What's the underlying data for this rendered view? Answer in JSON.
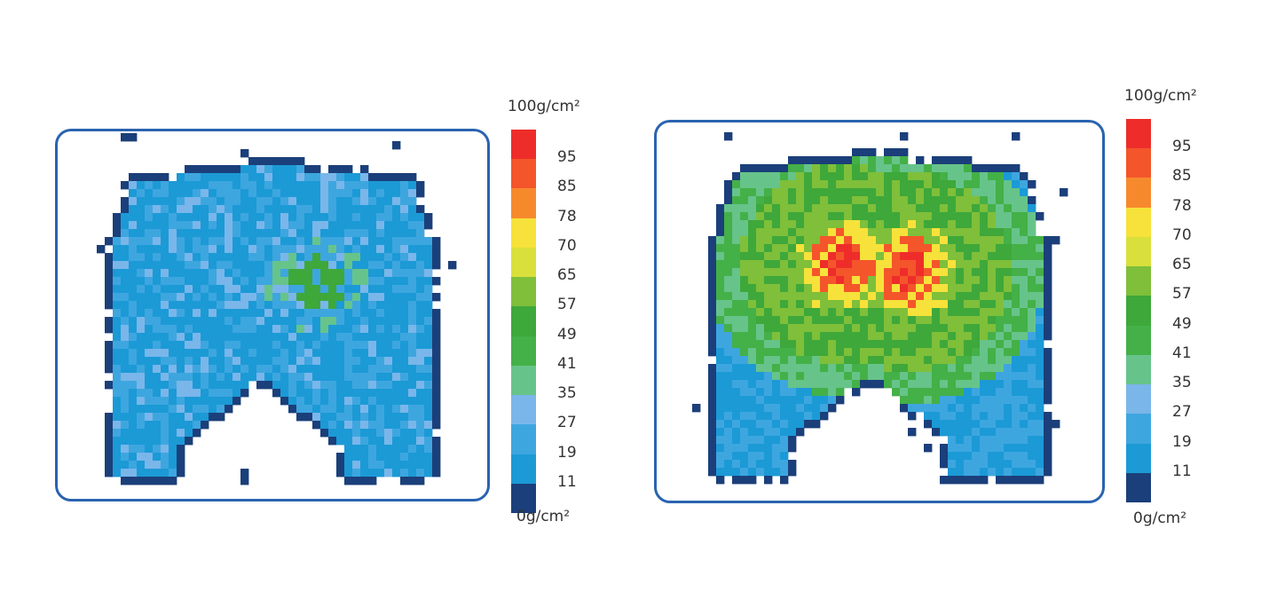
{
  "chart_data": [
    {
      "type": "heatmap",
      "panel": "left",
      "legend": {
        "top_label": "100g/cm²",
        "bottom_label": "0g/cm²",
        "tick_labels": [
          "95",
          "85",
          "78",
          "70",
          "65",
          "57",
          "49",
          "41",
          "35",
          "27",
          "19",
          "11"
        ],
        "colors": [
          "#ee2d2a",
          "#f4552b",
          "#f7892d",
          "#f6e23a",
          "#d9e03b",
          "#7fbf3a",
          "#3ea83a",
          "#44b048",
          "#66c48a",
          "#7ab6ea",
          "#3ea6df",
          "#1b9ad6",
          "#1b3f7a"
        ]
      },
      "dominant_range": "11–27",
      "peak_range": "49–57"
    },
    {
      "type": "heatmap",
      "panel": "right",
      "legend": {
        "top_label": "100g/cm²",
        "bottom_label": "0g/cm²",
        "tick_labels": [
          "95",
          "85",
          "78",
          "70",
          "65",
          "57",
          "49",
          "41",
          "35",
          "27",
          "19",
          "11"
        ],
        "colors": [
          "#ee2d2a",
          "#f4552b",
          "#f7892d",
          "#f6e23a",
          "#d9e03b",
          "#7fbf3a",
          "#3ea83a",
          "#44b048",
          "#66c48a",
          "#7ab6ea",
          "#3ea6df",
          "#1b9ad6",
          "#1b3f7a"
        ]
      },
      "dominant_range": "41–57",
      "peak_range": "85–100"
    }
  ]
}
